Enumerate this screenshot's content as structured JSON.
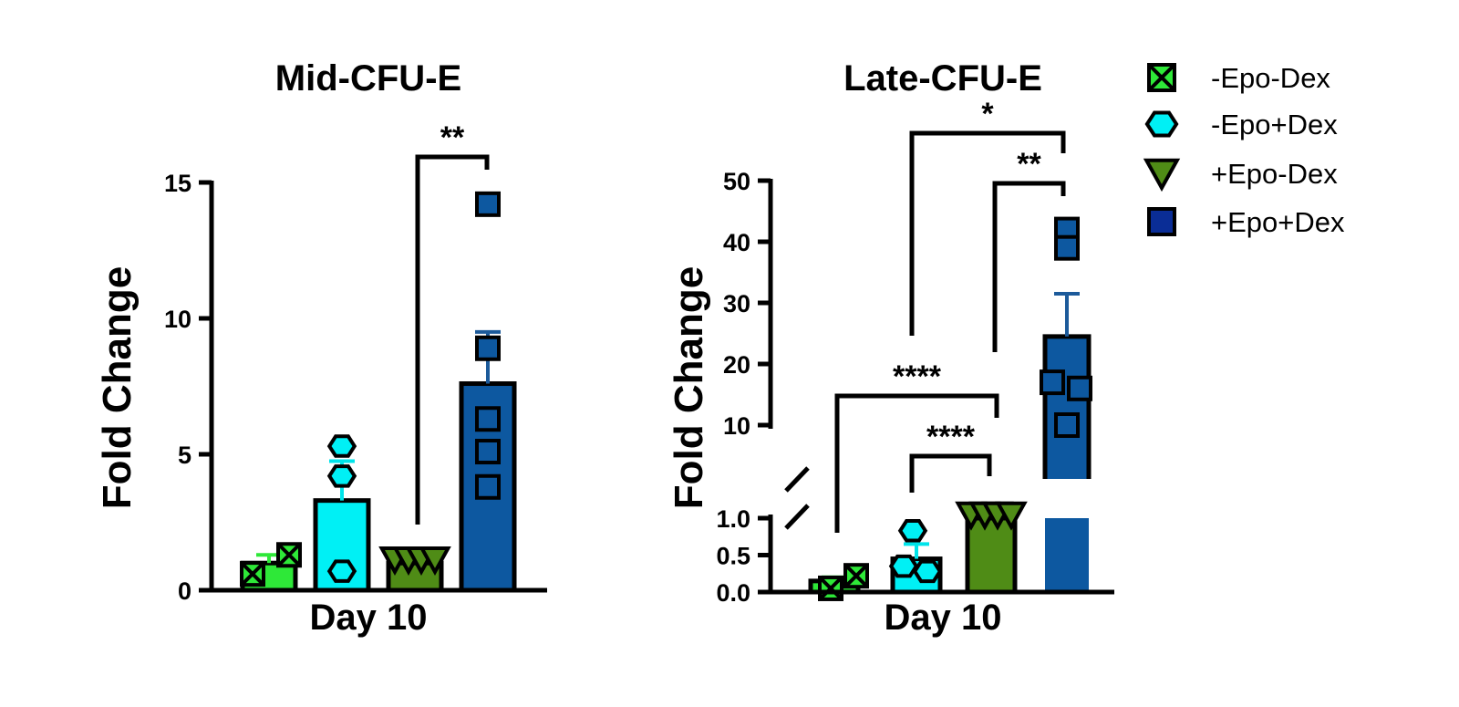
{
  "colors": {
    "neg_epo_neg_dex": "#2ee838",
    "neg_epo_pos_dex": "#00f0f5",
    "pos_epo_neg_dex": "#4f8c16",
    "pos_epo_pos_dex": "#0d58a0",
    "error_neg_epo_neg_dex": "#2ee838",
    "error_neg_epo_pos_dex": "#00e4ea",
    "error_pos_epo_neg_dex": "#4f8c16",
    "error_pos_epo_pos_dex": "#1c5a9a",
    "legend_pos_epo_pos_dex": "#0a2d96"
  },
  "legend": {
    "items": [
      {
        "label": "-Epo-Dex",
        "marker": "square-x-icon"
      },
      {
        "label": "-Epo+Dex",
        "marker": "hexagon-icon"
      },
      {
        "label": "+Epo-Dex",
        "marker": "triangle-down-icon"
      },
      {
        "label": "+Epo+Dex",
        "marker": "square-icon"
      }
    ]
  },
  "chart_data": [
    {
      "type": "bar",
      "title": "Mid-CFU-E",
      "xlabel": "Day 10",
      "ylabel": "Fold Change",
      "ylim": [
        0,
        15
      ],
      "yticks": [
        "0",
        "5",
        "10",
        "15"
      ],
      "grid": false,
      "series": [
        {
          "name": "-Epo-Dex",
          "mean": 1.0,
          "sem": 0.3,
          "points": [
            0.6,
            1.3
          ]
        },
        {
          "name": "-Epo+Dex",
          "mean": 3.3,
          "sem": 1.45,
          "points": [
            5.3,
            4.2,
            0.7
          ]
        },
        {
          "name": "+Epo-Dex",
          "mean": 1.0,
          "sem": 0.0,
          "points": [
            1.0,
            1.0,
            1.0,
            1.0
          ]
        },
        {
          "name": "+Epo+Dex",
          "mean": 7.6,
          "sem": 1.9,
          "points": [
            14.2,
            8.9,
            6.3,
            5.1,
            3.8
          ]
        }
      ],
      "significance": [
        {
          "from": "+Epo-Dex",
          "to": "+Epo+Dex",
          "label": "**"
        }
      ]
    },
    {
      "type": "bar",
      "title": "Late-CFU-E",
      "xlabel": "Day 10",
      "ylabel": "Fold Change",
      "broken_axis": true,
      "ylim_lower": [
        0,
        1.0
      ],
      "ylim_upper": [
        10,
        50
      ],
      "yticks": [
        "0.0",
        "0.5",
        "1.0",
        "10",
        "20",
        "30",
        "40",
        "50"
      ],
      "grid": false,
      "series": [
        {
          "name": "-Epo-Dex",
          "mean": 0.15,
          "sem": 0.05,
          "points": [
            0.05,
            0.22
          ]
        },
        {
          "name": "-Epo+Dex",
          "mean": 0.45,
          "sem": 0.2,
          "points": [
            0.83,
            0.35,
            0.28
          ]
        },
        {
          "name": "+Epo-Dex",
          "mean": 1.0,
          "sem": 0.0,
          "points": [
            1.0,
            1.0,
            1.0,
            1.0
          ]
        },
        {
          "name": "+Epo+Dex",
          "mean": 24.5,
          "sem": 7.0,
          "points": [
            42.0,
            39.0,
            17.0,
            16.0,
            10.0
          ]
        }
      ],
      "significance": [
        {
          "from": "-Epo-Dex",
          "to": "+Epo-Dex",
          "label": "****"
        },
        {
          "from": "-Epo+Dex",
          "to": "+Epo-Dex",
          "label": "****"
        },
        {
          "from": "+Epo-Dex",
          "to": "+Epo+Dex",
          "label": "**"
        },
        {
          "from": "-Epo+Dex",
          "to": "+Epo+Dex",
          "label": "*"
        }
      ]
    }
  ]
}
